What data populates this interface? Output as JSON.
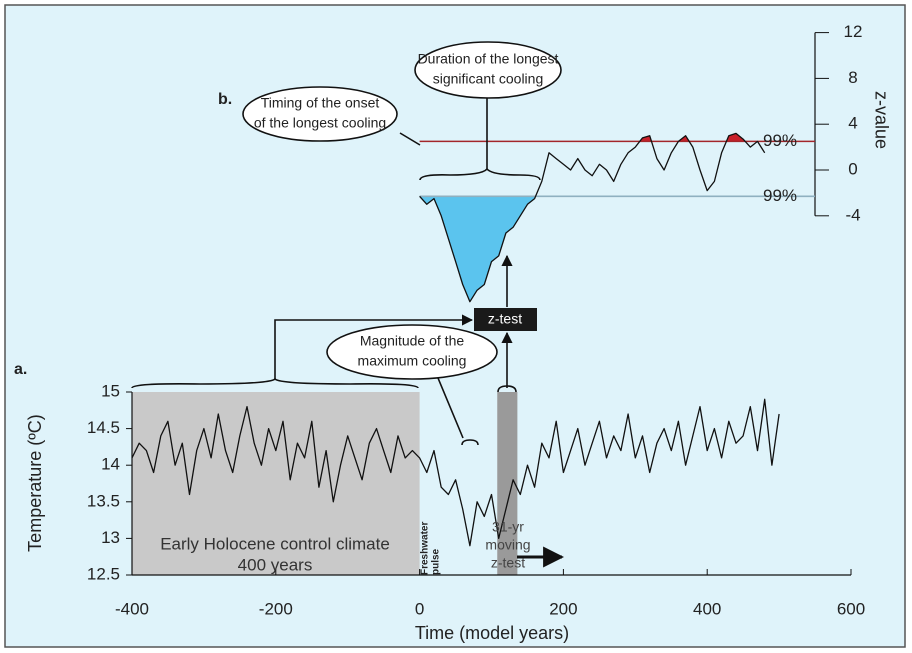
{
  "chart_data": [
    {
      "type": "line",
      "panel_label": "a.",
      "ylabel": "Temperature (ºC)",
      "xlabel": "Time (model years)",
      "xlim": [
        -400,
        600
      ],
      "xticks": [
        -400,
        -200,
        0,
        200,
        400,
        600
      ],
      "ylim": [
        12.5,
        15
      ],
      "yticks": [
        12.5,
        13,
        13.5,
        14,
        14.5,
        15
      ],
      "control_period": [
        -400,
        0
      ],
      "moving_window": [
        108,
        136
      ],
      "series": [
        {
          "color": "#111111",
          "x": [
            -400,
            -390,
            -380,
            -370,
            -360,
            -350,
            -340,
            -330,
            -320,
            -310,
            -300,
            -290,
            -280,
            -270,
            -260,
            -250,
            -240,
            -230,
            -220,
            -210,
            -200,
            -190,
            -180,
            -170,
            -160,
            -150,
            -140,
            -130,
            -120,
            -110,
            -100,
            -90,
            -80,
            -70,
            -60,
            -50,
            -40,
            -30,
            -20,
            -10,
            0,
            10,
            20,
            30,
            40,
            50,
            60,
            70,
            80,
            90,
            100,
            110,
            120,
            130,
            140,
            150,
            160,
            170,
            180,
            190,
            200,
            210,
            220,
            230,
            240,
            250,
            260,
            270,
            280,
            290,
            300,
            310,
            320,
            330,
            340,
            350,
            360,
            370,
            380,
            390,
            400,
            410,
            420,
            430,
            440,
            450,
            460,
            470,
            480,
            490,
            500
          ],
          "values": [
            14.1,
            14.3,
            14.2,
            13.9,
            14.4,
            14.6,
            14.0,
            14.3,
            13.6,
            14.2,
            14.5,
            14.1,
            14.7,
            14.2,
            13.9,
            14.4,
            14.8,
            14.3,
            14.0,
            14.5,
            14.2,
            14.6,
            13.8,
            14.3,
            14.1,
            14.6,
            13.7,
            14.2,
            13.5,
            14.0,
            14.4,
            14.1,
            13.8,
            14.3,
            14.5,
            14.2,
            13.9,
            14.4,
            14.1,
            14.2,
            14.1,
            13.9,
            14.2,
            13.7,
            13.6,
            13.8,
            13.4,
            12.9,
            13.5,
            13.3,
            13.6,
            13.0,
            13.4,
            13.8,
            13.6,
            14.0,
            13.7,
            14.3,
            14.1,
            14.6,
            13.9,
            14.2,
            14.5,
            14.0,
            14.3,
            14.6,
            14.1,
            14.4,
            14.2,
            14.7,
            14.1,
            14.4,
            13.9,
            14.3,
            14.5,
            14.2,
            14.6,
            14.0,
            14.4,
            14.8,
            14.2,
            14.5,
            14.1,
            14.6,
            14.3,
            14.4,
            14.8,
            14.2,
            14.9,
            14.0,
            14.7
          ]
        }
      ]
    },
    {
      "type": "line",
      "panel_label": "b.",
      "ylabel": "z-value",
      "ylim": [
        -12,
        12
      ],
      "yticks": [
        -4,
        0,
        4,
        8,
        12
      ],
      "thresholds": [
        {
          "z": 2.5,
          "label": "99%",
          "color": "#a3262a",
          "fill": "#c8202a"
        },
        {
          "z": -2.3,
          "label": "99%",
          "color": "#8fb0c0",
          "fill": "#5bc4ee"
        }
      ],
      "series": [
        {
          "color": "#111111",
          "x": [
            0,
            10,
            20,
            30,
            40,
            50,
            60,
            70,
            80,
            90,
            100,
            110,
            120,
            130,
            140,
            150,
            160,
            170,
            180,
            190,
            200,
            210,
            220,
            230,
            240,
            250,
            260,
            270,
            280,
            290,
            300,
            310,
            320,
            330,
            340,
            350,
            360,
            370,
            380,
            390,
            400,
            410,
            420,
            430,
            440,
            450,
            460,
            470,
            480
          ],
          "values": [
            -2.3,
            -3,
            -2.5,
            -4,
            -6,
            -8,
            -10,
            -11.5,
            -10.5,
            -10,
            -8,
            -7.5,
            -5.5,
            -5,
            -4,
            -3,
            -2.5,
            -1,
            1.5,
            1,
            0.5,
            0,
            1,
            0,
            -0.5,
            0.5,
            0,
            -1,
            0.5,
            1.5,
            2,
            2.8,
            3,
            1,
            0,
            1.5,
            2.5,
            3,
            2,
            0,
            -1.8,
            -1,
            1.5,
            3,
            3.2,
            2.7,
            2,
            2.5,
            1.5
          ]
        }
      ]
    }
  ],
  "annotations": {
    "onset": [
      "Timing of the onset",
      "of the longest cooling"
    ],
    "duration": [
      "Duration of the longest",
      "significant cooling"
    ],
    "magnitude": [
      "Magnitude of the",
      "maximum cooling"
    ],
    "ztest": "z-test",
    "control": [
      "Early Holocene control climate",
      "400 years"
    ],
    "pulse": [
      "Freshwater",
      "pulse"
    ],
    "window": [
      "31-yr",
      "moving",
      "z-test"
    ]
  }
}
